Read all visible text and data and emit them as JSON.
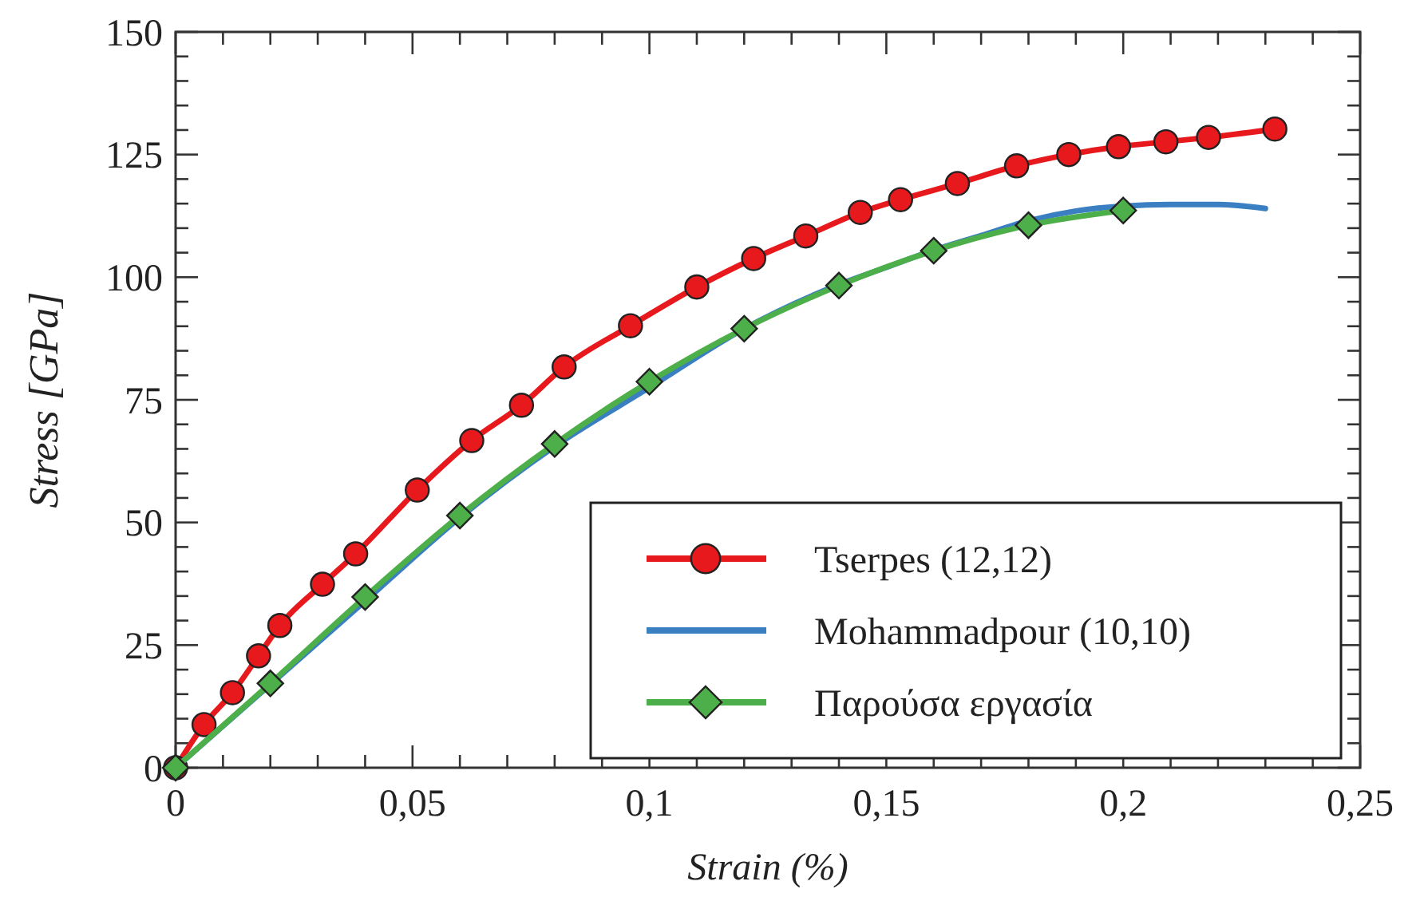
{
  "chart_data": {
    "type": "line",
    "xlabel": "Strain (%)",
    "ylabel": "Stress [GPa]",
    "xlim": [
      0,
      0.25
    ],
    "ylim": [
      0,
      150
    ],
    "xticks": [
      0,
      {
        "value": 0.01,
        "label": null
      },
      {
        "value": 0.02,
        "label": null
      },
      {
        "value": 0.03,
        "label": null
      },
      {
        "value": 0.04,
        "label": null
      },
      {
        "value": 0.05,
        "label": "0,05"
      },
      {
        "value": 0.06,
        "label": null
      },
      {
        "value": 0.07,
        "label": null
      },
      {
        "value": 0.08,
        "label": null
      },
      {
        "value": 0.09,
        "label": null
      },
      {
        "value": 0.1,
        "label": "0,1"
      },
      {
        "value": 0.11,
        "label": null
      },
      {
        "value": 0.12,
        "label": null
      },
      {
        "value": 0.13,
        "label": null
      },
      {
        "value": 0.14,
        "label": null
      },
      {
        "value": 0.15,
        "label": "0,15"
      },
      {
        "value": 0.16,
        "label": null
      },
      {
        "value": 0.17,
        "label": null
      },
      {
        "value": 0.18,
        "label": null
      },
      {
        "value": 0.19,
        "label": null
      },
      {
        "value": 0.2,
        "label": "0,2"
      },
      {
        "value": 0.21,
        "label": null
      },
      {
        "value": 0.22,
        "label": null
      },
      {
        "value": 0.23,
        "label": null
      },
      {
        "value": 0.24,
        "label": null
      },
      {
        "value": 0.25,
        "label": "0,25"
      }
    ],
    "yticks": [
      0,
      {
        "value": 5,
        "label": null
      },
      {
        "value": 10,
        "label": null
      },
      {
        "value": 15,
        "label": null
      },
      {
        "value": 20,
        "label": null
      },
      25,
      {
        "value": 30,
        "label": null
      },
      {
        "value": 35,
        "label": null
      },
      {
        "value": 40,
        "label": null
      },
      {
        "value": 45,
        "label": null
      },
      50,
      {
        "value": 55,
        "label": null
      },
      {
        "value": 60,
        "label": null
      },
      {
        "value": 65,
        "label": null
      },
      {
        "value": 70,
        "label": null
      },
      75,
      {
        "value": 80,
        "label": null
      },
      {
        "value": 85,
        "label": null
      },
      {
        "value": 90,
        "label": null
      },
      {
        "value": 95,
        "label": null
      },
      100,
      {
        "value": 105,
        "label": null
      },
      {
        "value": 110,
        "label": null
      },
      {
        "value": 115,
        "label": null
      },
      {
        "value": 120,
        "label": null
      },
      125,
      {
        "value": 130,
        "label": null
      },
      {
        "value": 135,
        "label": null
      },
      {
        "value": 140,
        "label": null
      },
      {
        "value": 145,
        "label": null
      },
      150
    ],
    "grid": false,
    "legend": "bottom right",
    "line_style": "solid",
    "series": [
      {
        "name": "Tserpes (12,12)",
        "color": "#e8191c",
        "marker": "circle",
        "x": [
          0,
          0.006,
          0.012,
          0.0175,
          0.022,
          0.031,
          0.038,
          0.051,
          0.0625,
          0.073,
          0.082,
          0.096,
          0.11,
          0.122,
          0.133,
          0.1445,
          0.153,
          0.165,
          0.1775,
          0.1885,
          0.199,
          0.209,
          0.218,
          0.232
        ],
        "values": [
          0,
          8.8,
          15.3,
          22.8,
          29,
          37.4,
          43.6,
          56.6,
          66.7,
          73.9,
          81.7,
          90.1,
          98,
          103.8,
          108.4,
          113.2,
          115.8,
          119.1,
          122.7,
          125,
          126.6,
          127.6,
          128.5,
          130.2
        ]
      },
      {
        "name": "Mohammadpour (10,10)",
        "color": "#3a7fc1",
        "marker": "none",
        "x": [
          0,
          0.02,
          0.04,
          0.06,
          0.08,
          0.1,
          0.12,
          0.14,
          0.15,
          0.16,
          0.17,
          0.18,
          0.19,
          0.2,
          0.21,
          0.22,
          0.23
        ],
        "values": [
          0,
          17,
          34,
          51,
          65.5,
          77.5,
          89.5,
          98.5,
          102,
          105.5,
          108.5,
          111.5,
          113.5,
          114.5,
          114.8,
          114.8,
          114
        ]
      },
      {
        "name": "Παρούσα εργασία",
        "color": "#4daf4a",
        "marker": "diamond",
        "x": [
          0,
          0.02,
          0.04,
          0.06,
          0.08,
          0.1,
          0.12,
          0.14,
          0.16,
          0.18,
          0.2
        ],
        "values": [
          0,
          17.2,
          34.8,
          51.4,
          66,
          78.7,
          89.5,
          98.3,
          105.4,
          110.6,
          113.6
        ]
      }
    ]
  }
}
